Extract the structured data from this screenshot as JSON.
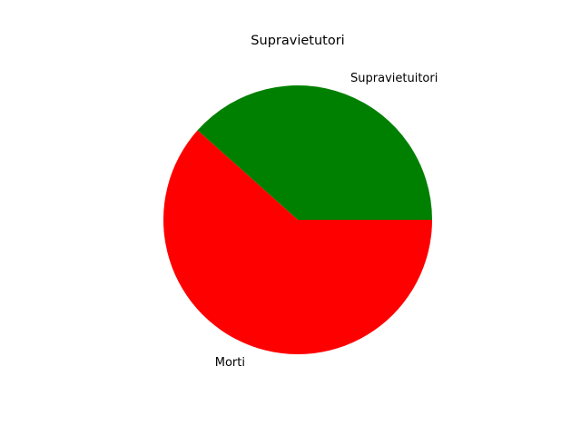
{
  "chart_data": {
    "type": "pie",
    "title": "Supravietutori",
    "categories": [
      "Supravietuitori",
      "Morti"
    ],
    "values": [
      38.4,
      61.6
    ],
    "colors": [
      "#008000",
      "#ff0000"
    ],
    "start_angle_deg": 0,
    "direction": "counterclockwise",
    "legend": "none"
  }
}
